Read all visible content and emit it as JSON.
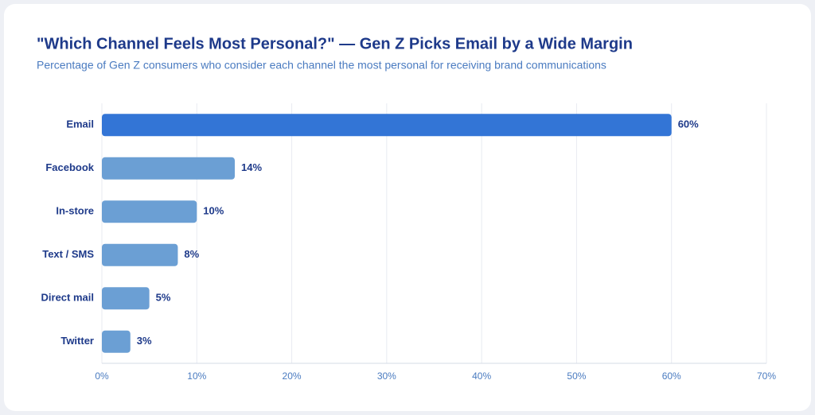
{
  "chart_data": {
    "type": "bar",
    "orientation": "horizontal",
    "title": "\"Which Channel Feels Most Personal?\" — Gen Z Picks Email by a Wide Margin",
    "subtitle": "Percentage of Gen Z consumers who consider each channel the most personal for receiving brand communications",
    "categories": [
      "Email",
      "Facebook",
      "In-store",
      "Text / SMS",
      "Direct mail",
      "Twitter"
    ],
    "values": [
      60,
      14,
      10,
      8,
      5,
      3
    ],
    "value_labels": [
      "60%",
      "14%",
      "10%",
      "8%",
      "5%",
      "3%"
    ],
    "colors": [
      "#3375d6",
      "#6b9fd4",
      "#6b9fd4",
      "#6b9fd4",
      "#6b9fd4",
      "#6b9fd4"
    ],
    "xlim": [
      0,
      70
    ],
    "xticks": [
      {
        "value": 0,
        "label": "0%"
      },
      {
        "value": 10,
        "label": "10%"
      },
      {
        "value": 20,
        "label": "20%"
      },
      {
        "value": 30,
        "label": "30%"
      },
      {
        "value": 40,
        "label": "40%"
      },
      {
        "value": 50,
        "label": "50%"
      },
      {
        "value": 60,
        "label": "60%"
      },
      {
        "value": 70,
        "label": "70%"
      }
    ],
    "grid": true
  }
}
